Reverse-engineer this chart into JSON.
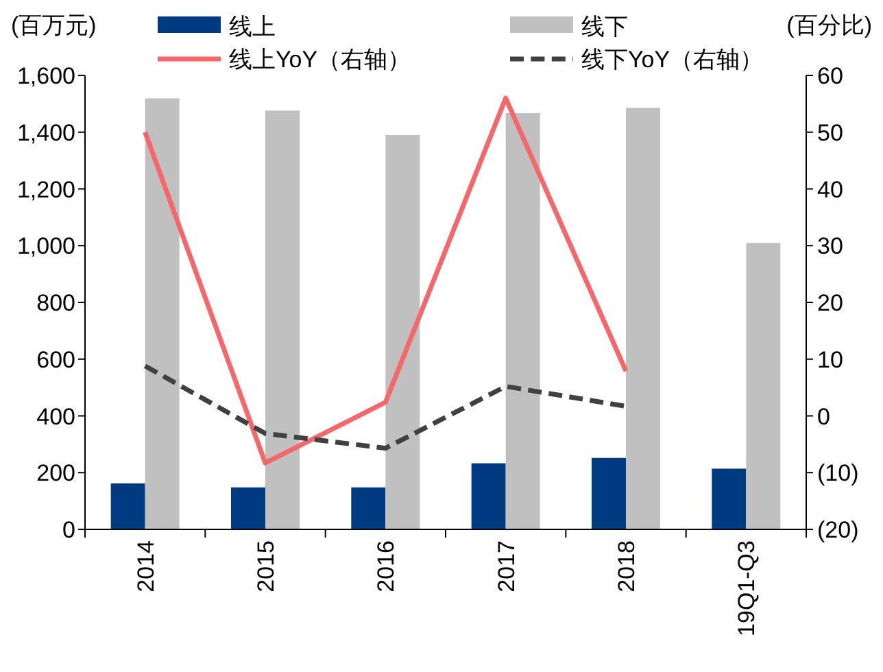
{
  "chart_data": {
    "type": "bar",
    "categories": [
      "2014",
      "2015",
      "2016",
      "2017",
      "2018",
      "19Q1-Q3"
    ],
    "ylabel": "(百万元)",
    "y2label": "(百分比)",
    "legend": "top",
    "ylim": [
      0,
      1600
    ],
    "yticks": [
      0,
      {
        "value": 200,
        "label": "200"
      },
      {
        "value": 400,
        "label": "400"
      },
      {
        "value": 600,
        "label": "600"
      },
      {
        "value": 800,
        "label": "800"
      },
      {
        "value": 1000,
        "label": "1,000"
      },
      {
        "value": 1200,
        "label": "1,200"
      },
      {
        "value": 1400,
        "label": "1,400"
      },
      {
        "value": 1600,
        "label": "1,600"
      }
    ],
    "y2lim": [
      -20,
      60
    ],
    "y2ticks": [
      {
        "value": -20,
        "label": "(20)"
      },
      {
        "value": -10,
        "label": "(10)"
      },
      0,
      10,
      20,
      30,
      40,
      50,
      60
    ],
    "series": [
      {
        "name": "线上",
        "color": "#003a80",
        "values": [
          162,
          148,
          148,
          233,
          252,
          214
        ]
      },
      {
        "name": "线下",
        "color": "#c0c0c0",
        "values": [
          1519,
          1476,
          1390,
          1467,
          1486,
          1010
        ]
      },
      {
        "name": "线上YoY（右轴）",
        "type": "line",
        "axis": "y2",
        "color": "#f4686b",
        "line_style": "solid",
        "values": [
          50,
          -8.3,
          2.4,
          56,
          7.9,
          null
        ]
      },
      {
        "name": "线下YoY（右轴）",
        "type": "line",
        "axis": "y2",
        "color": "#404040",
        "line_style": "dashed",
        "values": [
          8.8,
          -3.1,
          -5.7,
          5.2,
          1.7,
          null
        ]
      }
    ]
  }
}
